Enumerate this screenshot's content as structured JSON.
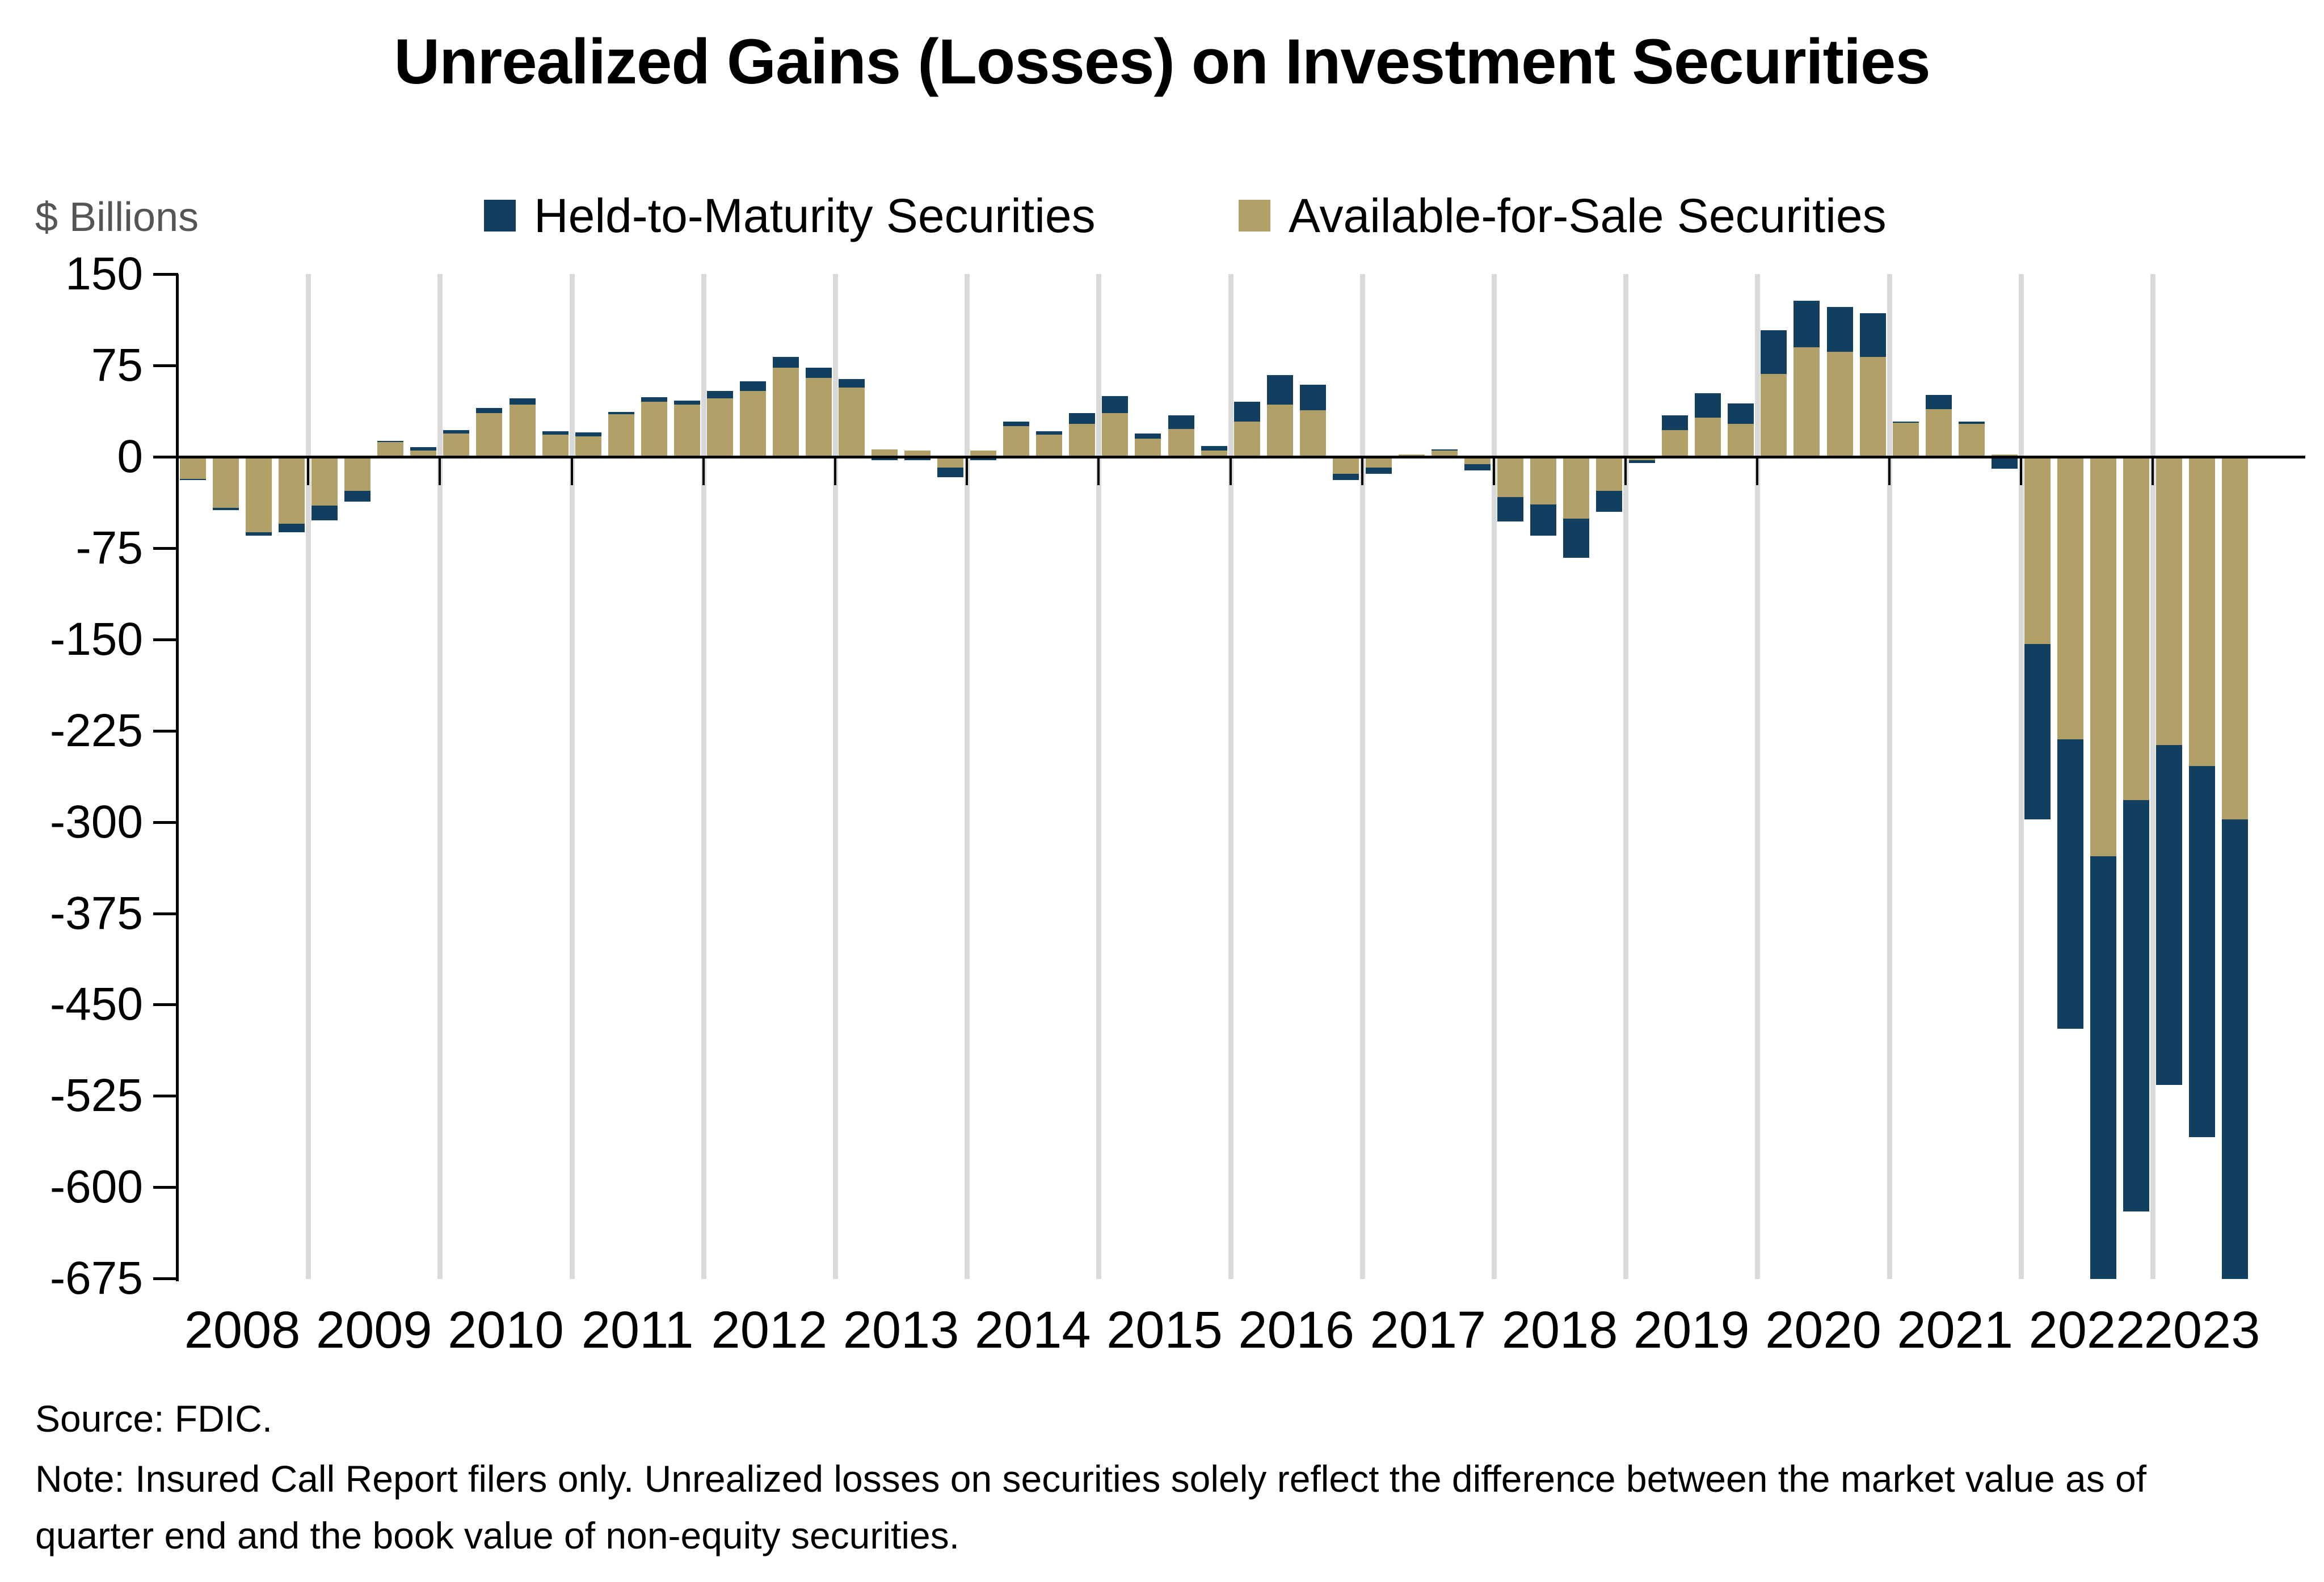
{
  "title": "Unrealized Gains (Losses) on Investment Securities",
  "y_axis_unit": "$ Billions",
  "source": "Source: FDIC.",
  "note": "Note: Insured Call Report filers only. Unrealized losses on securities solely reflect the difference between the market value as of quarter end and the book value of non-equity securities.",
  "colors": {
    "htm": "#123F5F",
    "afs": "#B1A168",
    "gridline": "#D9D9D9",
    "axis": "#000000"
  },
  "chart_data": {
    "type": "bar",
    "stacked": true,
    "units": "$ Billions",
    "title": "Unrealized Gains (Losses) on Investment Securities",
    "ylim": [
      -675,
      150
    ],
    "y_ticks": [
      150,
      75,
      0,
      -75,
      -150,
      -225,
      -300,
      -375,
      -450,
      -525,
      -600,
      -675
    ],
    "grid": "vertical lines at year boundaries",
    "legend_position": "top",
    "year_labels": [
      "2008",
      "2009",
      "2010",
      "2011",
      "2012",
      "2013",
      "2014",
      "2015",
      "2016",
      "2017",
      "2018",
      "2019",
      "2020",
      "2021",
      "2022",
      "2023"
    ],
    "categories": [
      "2008Q1",
      "2008Q2",
      "2008Q3",
      "2008Q4",
      "2009Q1",
      "2009Q2",
      "2009Q3",
      "2009Q4",
      "2010Q1",
      "2010Q2",
      "2010Q3",
      "2010Q4",
      "2011Q1",
      "2011Q2",
      "2011Q3",
      "2011Q4",
      "2012Q1",
      "2012Q2",
      "2012Q3",
      "2012Q4",
      "2013Q1",
      "2013Q2",
      "2013Q3",
      "2013Q4",
      "2014Q1",
      "2014Q2",
      "2014Q3",
      "2014Q4",
      "2015Q1",
      "2015Q2",
      "2015Q3",
      "2015Q4",
      "2016Q1",
      "2016Q2",
      "2016Q3",
      "2016Q4",
      "2017Q1",
      "2017Q2",
      "2017Q3",
      "2017Q4",
      "2018Q1",
      "2018Q2",
      "2018Q3",
      "2018Q4",
      "2019Q1",
      "2019Q2",
      "2019Q3",
      "2019Q4",
      "2020Q1",
      "2020Q2",
      "2020Q3",
      "2020Q4",
      "2021Q1",
      "2021Q2",
      "2021Q3",
      "2021Q4",
      "2022Q1",
      "2022Q2",
      "2022Q3",
      "2022Q4",
      "2023Q1",
      "2023Q2",
      "2023Q3"
    ],
    "series": [
      {
        "name": "Held-to-Maturity Securities",
        "color": "#123F5F",
        "values": [
          -1,
          -2,
          -3,
          -7,
          -12,
          -9,
          1,
          3,
          3,
          4,
          5,
          3,
          3,
          2,
          4,
          3,
          6,
          8,
          9,
          8,
          7,
          -3,
          -3,
          -8,
          -3,
          4,
          3,
          9,
          14,
          4,
          11,
          4,
          16,
          24,
          21,
          -5,
          -5,
          0,
          1,
          -5,
          -20,
          -26,
          -32,
          -17,
          -2,
          12,
          20,
          17,
          36,
          38,
          37,
          36,
          1,
          12,
          2,
          -10,
          -144,
          -238,
          -362,
          -338,
          -279,
          -305,
          -386
        ]
      },
      {
        "name": "Available-for-Sale Securities",
        "color": "#B1A168",
        "values": [
          -18,
          -42,
          -62,
          -55,
          -40,
          -28,
          12,
          5,
          19,
          36,
          43,
          18,
          17,
          35,
          45,
          43,
          48,
          54,
          73,
          65,
          57,
          6,
          5,
          -9,
          5,
          25,
          18,
          27,
          36,
          15,
          23,
          5,
          29,
          43,
          38,
          -14,
          -9,
          2,
          5,
          -6,
          -33,
          -39,
          -51,
          -28,
          -3,
          22,
          32,
          27,
          68,
          90,
          86,
          82,
          28,
          39,
          27,
          2,
          -154,
          -232,
          -328,
          -282,
          -237,
          -254,
          -298
        ]
      }
    ],
    "stack_order_from_zero": [
      "Available-for-Sale Securities",
      "Held-to-Maturity Securities"
    ]
  }
}
